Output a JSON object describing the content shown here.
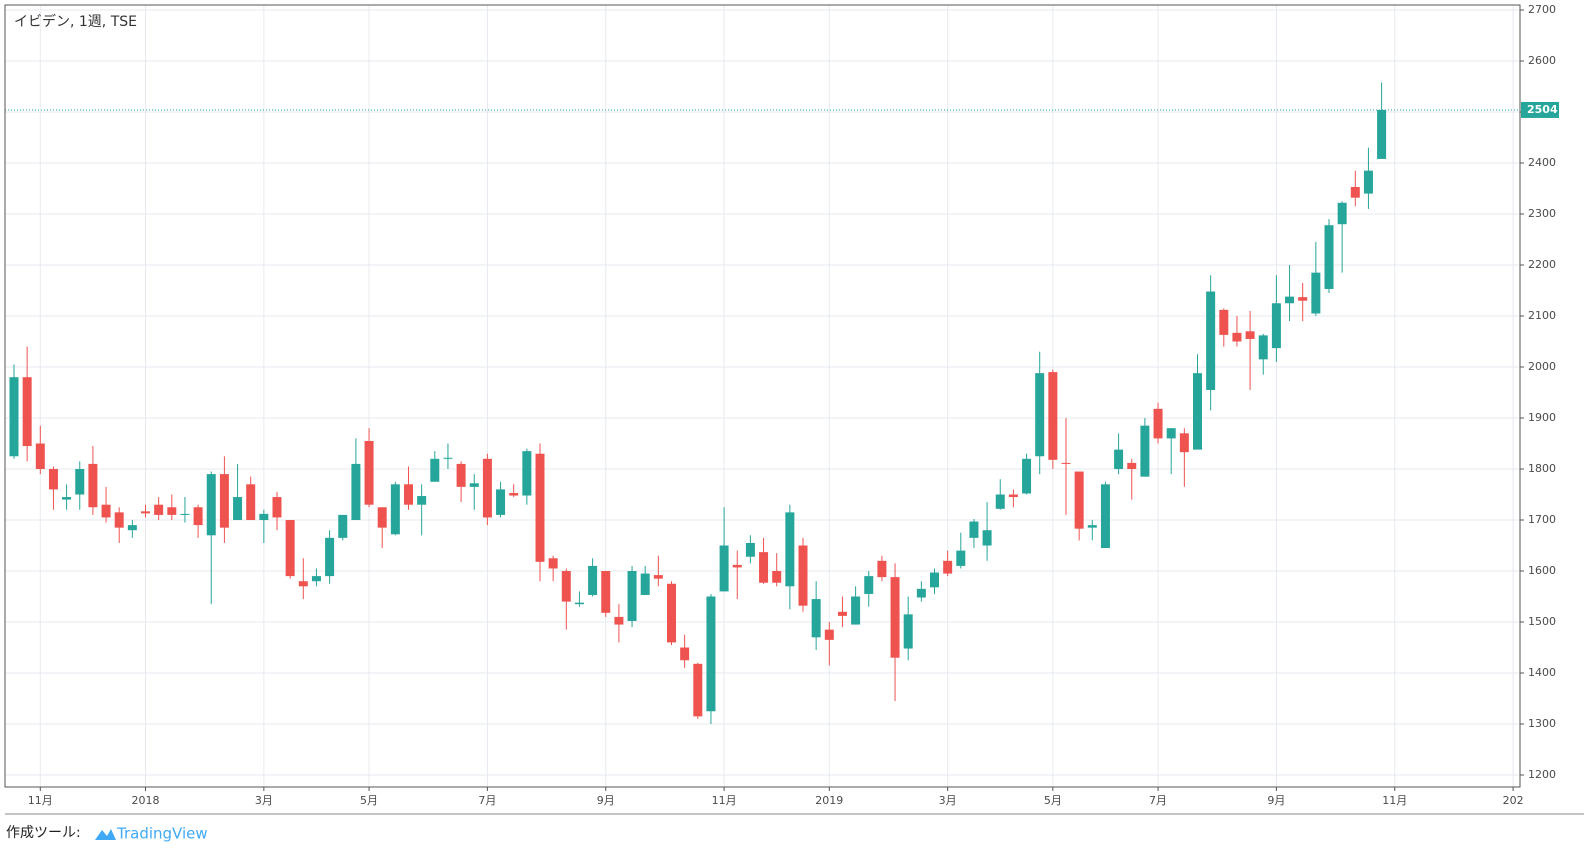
{
  "chart_data": {
    "type": "candlestick",
    "title": "イビデン, 1週, TSE",
    "categories": [
      null,
      null,
      "11月",
      null,
      null,
      null,
      null,
      null,
      null,
      null,
      "2018",
      null,
      null,
      null,
      null,
      null,
      null,
      null,
      null,
      "3月",
      null,
      null,
      null,
      null,
      null,
      null,
      null,
      "5月",
      null,
      null,
      null,
      null,
      null,
      null,
      null,
      null,
      "7月",
      null,
      null,
      null,
      null,
      null,
      null,
      null,
      null,
      "9月",
      null,
      null,
      null,
      null,
      null,
      null,
      null,
      null,
      "11月",
      null,
      null,
      null,
      null,
      null,
      null,
      null,
      "2019",
      null,
      null,
      null,
      null,
      null,
      null,
      null,
      null,
      "3月",
      null,
      null,
      null,
      null,
      null,
      null,
      null,
      "5月",
      null,
      null,
      null,
      null,
      null,
      null,
      null,
      "7月",
      null,
      null,
      null,
      null,
      null,
      null,
      null,
      null,
      "9月",
      null,
      null,
      null,
      null,
      null,
      null,
      null,
      null,
      "11月",
      null,
      null,
      null,
      null,
      null,
      null,
      null,
      null,
      "202"
    ],
    "open": [
      1825,
      1980,
      1850,
      1800,
      1740,
      1750,
      1810,
      1730,
      1715,
      1680,
      1717,
      1730,
      1725,
      1710,
      1725,
      1670,
      1790,
      1700,
      1770,
      1700,
      1745,
      1700,
      1580,
      1580,
      1590,
      1665,
      1700,
      1855,
      1725,
      1672,
      1770,
      1730,
      1775,
      1820,
      1810,
      1765,
      1820,
      1710,
      1753,
      1748,
      1830,
      1625,
      1600,
      1535,
      1553,
      1600,
      1510,
      1502,
      1553,
      1592,
      1575,
      1450,
      1418,
      1325,
      1560,
      1612,
      1628,
      1637,
      1600,
      1570,
      1650,
      1470,
      1485,
      1520,
      1495,
      1555,
      1620,
      1588,
      1448,
      1548,
      1568,
      1620,
      1610,
      1665,
      1650,
      1722,
      1750,
      1752,
      1825,
      1990,
      1812,
      1795,
      1685,
      1645,
      1800,
      1812,
      1785,
      1918,
      1860,
      1870,
      1838,
      1955,
      2112,
      2067,
      2070,
      2015,
      2037,
      2125,
      2137,
      2105,
      2153,
      2280,
      2353,
      2340,
      2408,
      null,
      null,
      null,
      null,
      null,
      null,
      null,
      null,
      null,
      null
    ],
    "high": [
      2005,
      2040,
      1885,
      1805,
      1770,
      1815,
      1845,
      1765,
      1725,
      1700,
      1730,
      1745,
      1750,
      1745,
      1730,
      1795,
      1825,
      1810,
      1785,
      1720,
      1755,
      1700,
      1625,
      1605,
      1680,
      1710,
      1860,
      1880,
      1725,
      1775,
      1805,
      1770,
      1835,
      1850,
      1815,
      1790,
      1830,
      1775,
      1770,
      1840,
      1850,
      1630,
      1605,
      1560,
      1625,
      1600,
      1535,
      1610,
      1610,
      1630,
      1580,
      1475,
      1420,
      1555,
      1725,
      1640,
      1670,
      1665,
      1635,
      1730,
      1665,
      1580,
      1500,
      1550,
      1570,
      1600,
      1630,
      1615,
      1550,
      1580,
      1605,
      1640,
      1675,
      1702,
      1735,
      1780,
      1760,
      1830,
      2030,
      1995,
      1900,
      1795,
      1700,
      1775,
      1870,
      1820,
      1900,
      1930,
      1880,
      1880,
      2025,
      2180,
      2115,
      2100,
      2110,
      2065,
      2180,
      2200,
      2165,
      2245,
      2290,
      2325,
      2385,
      2430,
      2558,
      null,
      null,
      null,
      null,
      null,
      null,
      null,
      null,
      null,
      null
    ],
    "low": [
      1820,
      1815,
      1790,
      1720,
      1720,
      1720,
      1710,
      1695,
      1655,
      1665,
      1705,
      1700,
      1700,
      1695,
      1665,
      1535,
      1655,
      1700,
      1700,
      1655,
      1680,
      1585,
      1545,
      1570,
      1575,
      1660,
      1700,
      1725,
      1645,
      1670,
      1720,
      1670,
      1775,
      1800,
      1735,
      1720,
      1690,
      1705,
      1745,
      1730,
      1580,
      1580,
      1485,
      1530,
      1550,
      1510,
      1460,
      1490,
      1553,
      1570,
      1455,
      1410,
      1310,
      1300,
      1560,
      1545,
      1615,
      1575,
      1570,
      1525,
      1520,
      1445,
      1415,
      1490,
      1495,
      1530,
      1580,
      1345,
      1425,
      1540,
      1555,
      1590,
      1605,
      1645,
      1620,
      1720,
      1725,
      1750,
      1790,
      1800,
      1710,
      1660,
      1660,
      1645,
      1790,
      1740,
      1785,
      1850,
      1790,
      1765,
      1838,
      1915,
      2040,
      2040,
      1955,
      1985,
      2010,
      2090,
      2090,
      2100,
      2145,
      2185,
      2315,
      2310,
      2408,
      null,
      null,
      null,
      null,
      null,
      null,
      null,
      null,
      null,
      null
    ],
    "close": [
      1980,
      1845,
      1800,
      1760,
      1745,
      1800,
      1725,
      1705,
      1685,
      1690,
      1713,
      1710,
      1710,
      1712,
      1690,
      1790,
      1685,
      1745,
      1700,
      1712,
      1705,
      1590,
      1570,
      1590,
      1665,
      1710,
      1810,
      1730,
      1685,
      1770,
      1730,
      1747,
      1820,
      1822,
      1765,
      1772,
      1705,
      1760,
      1748,
      1835,
      1618,
      1605,
      1540,
      1538,
      1610,
      1518,
      1495,
      1600,
      1595,
      1585,
      1460,
      1425,
      1315,
      1550,
      1650,
      1607,
      1655,
      1577,
      1577,
      1715,
      1532,
      1545,
      1465,
      1512,
      1550,
      1590,
      1588,
      1430,
      1515,
      1565,
      1597,
      1595,
      1640,
      1697,
      1680,
      1750,
      1745,
      1820,
      1988,
      1818,
      1810,
      1683,
      1690,
      1770,
      1838,
      1800,
      1885,
      1860,
      1880,
      1833,
      1988,
      2148,
      2063,
      2050,
      2055,
      2062,
      2125,
      2138,
      2130,
      2185,
      2278,
      2322,
      2332,
      2385,
      2504,
      null,
      null,
      null,
      null,
      null,
      null,
      null,
      null,
      null,
      null
    ],
    "up_color": "#26a69a",
    "down_color": "#ef5350",
    "ylim": [
      1176.5,
      2709.8
    ],
    "yticks": [
      1200,
      1300,
      1400,
      1500,
      1600,
      1700,
      1800,
      1900,
      2000,
      2100,
      2200,
      2300,
      2400,
      2500,
      2600,
      2700
    ],
    "grid": true,
    "last_price_line": true
  },
  "footer": {
    "prefix": "作成ツール:",
    "brand": "TradingView"
  }
}
